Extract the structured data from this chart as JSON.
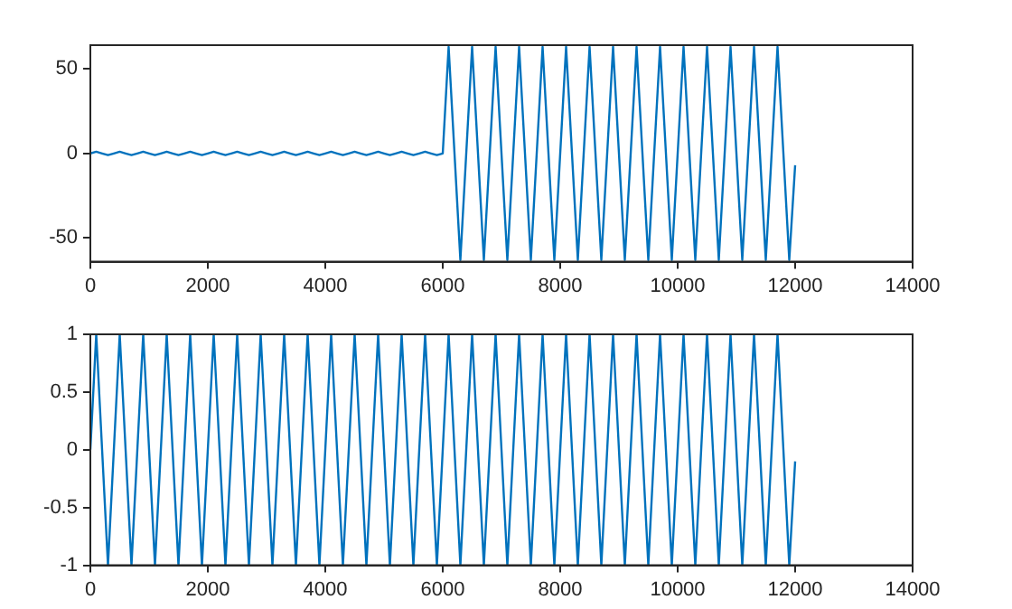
{
  "chart_data": [
    {
      "type": "line",
      "x": [
        0,
        100,
        200,
        300,
        400,
        500,
        600,
        700,
        800,
        900,
        1000,
        1100,
        1200,
        1300,
        1400,
        1500,
        1600,
        1700,
        1800,
        1900,
        2000,
        2100,
        2200,
        2300,
        2400,
        2500,
        2600,
        2700,
        2800,
        2900,
        3000,
        3100,
        3200,
        3300,
        3400,
        3500,
        3600,
        3700,
        3800,
        3900,
        4000,
        4100,
        4200,
        4300,
        4400,
        4500,
        4600,
        4700,
        4800,
        4900,
        5000,
        5100,
        5200,
        5300,
        5400,
        5500,
        5600,
        5700,
        5800,
        5900,
        6000,
        6100,
        6200,
        6300,
        6400,
        6500,
        6600,
        6700,
        6800,
        6900,
        7000,
        7100,
        7200,
        7300,
        7400,
        7500,
        7600,
        7700,
        7800,
        7900,
        8000,
        8100,
        8200,
        8300,
        8400,
        8500,
        8600,
        8700,
        8800,
        8900,
        9000,
        9100,
        9200,
        9300,
        9400,
        9500,
        9600,
        9700,
        9800,
        9900,
        10000,
        10100,
        10200,
        10300,
        10400,
        10500,
        10600,
        10700,
        10800,
        10900,
        11000,
        11100,
        11200,
        11300,
        11400,
        11500,
        11600,
        11700,
        11800,
        11900,
        12000
      ],
      "series": [
        {
          "color": "#0072bd",
          "values": [
            0,
            1,
            0,
            -1,
            0,
            1,
            0,
            -1,
            0,
            1,
            0,
            -1,
            0,
            1,
            0,
            -1,
            0,
            1,
            0,
            -1,
            0,
            1,
            0,
            -1,
            0,
            1,
            0,
            -1,
            0,
            1,
            0,
            -1,
            0,
            1,
            0,
            -1,
            0,
            1,
            0,
            -1,
            0,
            1,
            0,
            -1,
            0,
            1,
            0,
            -1,
            0,
            1,
            0,
            -1,
            0,
            1,
            0,
            -1,
            0,
            1,
            0,
            -1,
            0,
            63,
            0,
            -63,
            0,
            63,
            0,
            -63,
            0,
            63,
            0,
            -63,
            0,
            63,
            0,
            -63,
            0,
            63,
            0,
            -63,
            0,
            63,
            0,
            -63,
            0,
            63,
            0,
            -63,
            0,
            63,
            0,
            -63,
            0,
            63,
            0,
            -63,
            0,
            63,
            0,
            -63,
            0,
            63,
            0,
            -63,
            0,
            63,
            0,
            -63,
            0,
            63,
            0,
            -63,
            0,
            63,
            0,
            -63,
            0,
            63,
            0,
            -63,
            -7
          ]
        }
      ],
      "xlim": [
        0,
        14000
      ],
      "xticks": [
        0,
        2000,
        4000,
        6000,
        8000,
        10000,
        12000,
        14000
      ],
      "ylim": [
        -64,
        64
      ],
      "yticks": [
        -50,
        0,
        50
      ]
    },
    {
      "type": "line",
      "x": [
        0,
        100,
        200,
        300,
        400,
        500,
        600,
        700,
        800,
        900,
        1000,
        1100,
        1200,
        1300,
        1400,
        1500,
        1600,
        1700,
        1800,
        1900,
        2000,
        2100,
        2200,
        2300,
        2400,
        2500,
        2600,
        2700,
        2800,
        2900,
        3000,
        3100,
        3200,
        3300,
        3400,
        3500,
        3600,
        3700,
        3800,
        3900,
        4000,
        4100,
        4200,
        4300,
        4400,
        4500,
        4600,
        4700,
        4800,
        4900,
        5000,
        5100,
        5200,
        5300,
        5400,
        5500,
        5600,
        5700,
        5800,
        5900,
        6000,
        6100,
        6200,
        6300,
        6400,
        6500,
        6600,
        6700,
        6800,
        6900,
        7000,
        7100,
        7200,
        7300,
        7400,
        7500,
        7600,
        7700,
        7800,
        7900,
        8000,
        8100,
        8200,
        8300,
        8400,
        8500,
        8600,
        8700,
        8800,
        8900,
        9000,
        9100,
        9200,
        9300,
        9400,
        9500,
        9600,
        9700,
        9800,
        9900,
        10000,
        10100,
        10200,
        10300,
        10400,
        10500,
        10600,
        10700,
        10800,
        10900,
        11000,
        11100,
        11200,
        11300,
        11400,
        11500,
        11600,
        11700,
        11800,
        11900,
        12000
      ],
      "series": [
        {
          "color": "#0072bd",
          "values": [
            0,
            1,
            0,
            -1,
            0,
            1,
            0,
            -1,
            0,
            1,
            0,
            -1,
            0,
            1,
            0,
            -1,
            0,
            1,
            0,
            -1,
            0,
            1,
            0,
            -1,
            0,
            1,
            0,
            -1,
            0,
            1,
            0,
            -1,
            0,
            1,
            0,
            -1,
            0,
            1,
            0,
            -1,
            0,
            1,
            0,
            -1,
            0,
            1,
            0,
            -1,
            0,
            1,
            0,
            -1,
            0,
            1,
            0,
            -1,
            0,
            1,
            0,
            -1,
            0,
            1,
            0,
            -1,
            0,
            1,
            0,
            -1,
            0,
            1,
            0,
            -1,
            0,
            1,
            0,
            -1,
            0,
            1,
            0,
            -1,
            0,
            1,
            0,
            -1,
            0,
            1,
            0,
            -1,
            0,
            1,
            0,
            -1,
            0,
            1,
            0,
            -1,
            0,
            1,
            0,
            -1,
            0,
            1,
            0,
            -1,
            0,
            1,
            0,
            -1,
            0,
            1,
            0,
            -1,
            0,
            1,
            0,
            -1,
            0,
            1,
            0,
            -1,
            -0.1
          ]
        }
      ],
      "xlim": [
        0,
        14000
      ],
      "xticks": [
        0,
        2000,
        4000,
        6000,
        8000,
        10000,
        12000,
        14000
      ],
      "ylim": [
        -1,
        1
      ],
      "yticks": [
        -1,
        -0.5,
        0,
        0.5,
        1
      ]
    }
  ]
}
